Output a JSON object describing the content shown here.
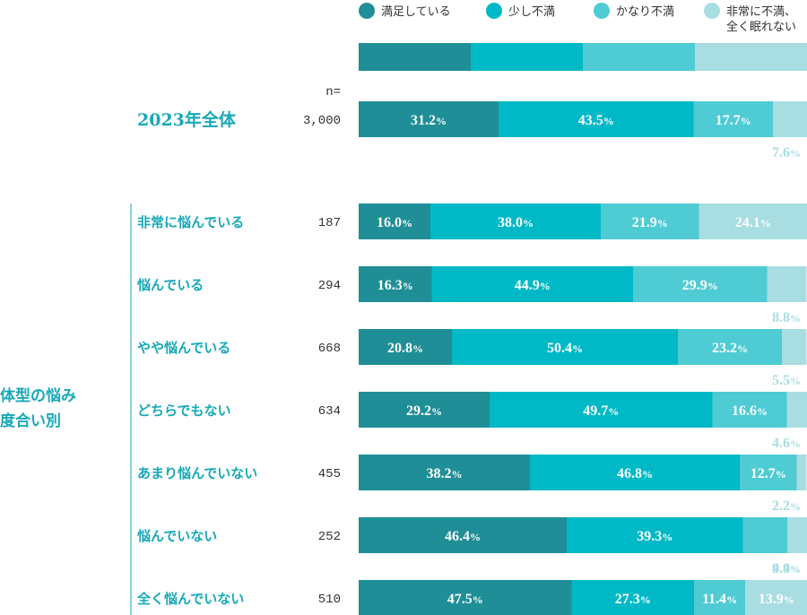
{
  "chart_data": {
    "type": "bar",
    "orientation": "horizontal",
    "stacked": true,
    "percent_suffix": "%",
    "n_header": "n=",
    "group_label_lines": [
      "体型の悩み",
      "度合い別"
    ],
    "series": [
      {
        "name": "満足している",
        "color": "#1f8e96"
      },
      {
        "name": "少し不満",
        "color": "#00b9c6"
      },
      {
        "name": "かなり不満",
        "color": "#4fcbd4"
      },
      {
        "name": "非常に不満、全く眠れない",
        "legend_lines": [
          "非常に不満、",
          "全く眠れない"
        ],
        "color": "#a8dde2"
      }
    ],
    "total_row": {
      "label": "2023年全体",
      "n": "3,000",
      "values": [
        31.2,
        43.5,
        17.7,
        7.6
      ]
    },
    "rows": [
      {
        "label": "非常に悩んでいる",
        "n": "187",
        "values": [
          16.0,
          38.0,
          21.9,
          24.1
        ]
      },
      {
        "label": "悩んでいる",
        "n": "294",
        "values": [
          16.3,
          44.9,
          29.9,
          8.8
        ]
      },
      {
        "label": "やや悩んでいる",
        "n": "668",
        "values": [
          20.8,
          50.4,
          23.2,
          5.5
        ]
      },
      {
        "label": "どちらでもない",
        "n": "634",
        "values": [
          29.2,
          49.7,
          16.6,
          4.6
        ]
      },
      {
        "label": "あまり悩んでいない",
        "n": "455",
        "values": [
          38.2,
          46.8,
          12.7,
          2.2
        ]
      },
      {
        "label": "悩んでいない",
        "n": "252",
        "values": [
          46.4,
          39.3,
          9.9,
          4.4
        ]
      },
      {
        "label": "全く悩んでいない",
        "n": "510",
        "values": [
          47.5,
          27.3,
          11.4,
          13.9
        ]
      }
    ]
  }
}
